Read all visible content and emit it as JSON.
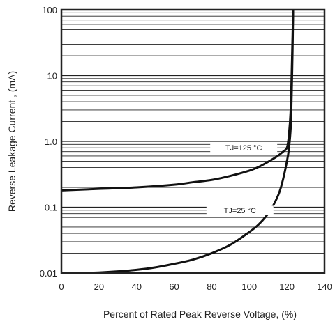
{
  "chart_data": {
    "type": "line",
    "xlabel": "Percent of Rated Peak Reverse Voltage, (%)",
    "ylabel": "Reverse Leakage Current , (mA)",
    "xlim": [
      0,
      140
    ],
    "ylim": [
      0.01,
      100
    ],
    "yscale": "log",
    "grid": true,
    "x_ticks": [
      0,
      20,
      40,
      60,
      80,
      100,
      120,
      140
    ],
    "x_tick_labels": [
      "0",
      "20",
      "40",
      "60",
      "80",
      "100",
      "120",
      "140"
    ],
    "y_ticks": [
      0.01,
      0.1,
      1,
      10,
      100
    ],
    "y_tick_labels": [
      "0.01",
      "0.1",
      "1.0",
      "10",
      "100"
    ],
    "annotations": [
      {
        "text": "TJ=125 °C",
        "x": 97,
        "y": 0.8
      },
      {
        "text": "TJ=25 °C",
        "x": 95,
        "y": 0.09
      }
    ],
    "series": [
      {
        "name": "TJ=125 °C",
        "x": [
          0,
          20,
          40,
          60,
          70,
          80,
          90,
          100,
          105,
          110,
          115,
          118,
          120,
          121,
          122,
          122.5,
          123,
          123.3
        ],
        "y": [
          0.18,
          0.19,
          0.2,
          0.22,
          0.24,
          0.26,
          0.3,
          0.36,
          0.41,
          0.49,
          0.6,
          0.7,
          0.8,
          1.2,
          3,
          10,
          40,
          100
        ]
      },
      {
        "name": "TJ=25 °C",
        "x": [
          0,
          10,
          20,
          30,
          40,
          50,
          60,
          70,
          80,
          90,
          100,
          105,
          110,
          113,
          116,
          118,
          120,
          121,
          122,
          122.5,
          123,
          123.3
        ],
        "y": [
          0.01,
          0.01,
          0.0102,
          0.0106,
          0.0112,
          0.0122,
          0.0138,
          0.016,
          0.02,
          0.027,
          0.042,
          0.055,
          0.08,
          0.11,
          0.17,
          0.27,
          0.5,
          0.75,
          1.6,
          5,
          25,
          100
        ]
      }
    ]
  }
}
